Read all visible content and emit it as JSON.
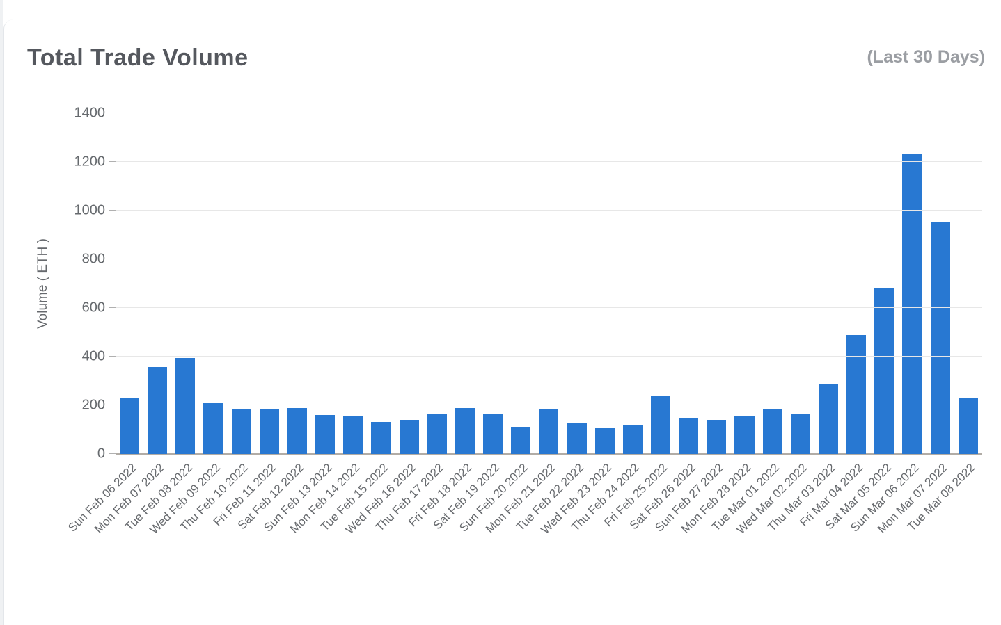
{
  "header": {
    "title": "Total Trade Volume",
    "subtitle": "(Last 30 Days)"
  },
  "colors": {
    "bar": "#2878d2",
    "grid": "#e7e7e7",
    "axis_baseline": "#b1aca6",
    "tick_text": "#666a6e",
    "title_text": "#55585e",
    "subtitle_text": "#9b9ea3"
  },
  "chart_data": {
    "type": "bar",
    "title": "Total Trade Volume",
    "subtitle": "(Last 30 Days)",
    "xlabel": "",
    "ylabel": "Volume ( ETH )",
    "ylim": [
      0,
      1400
    ],
    "ytick_interval": 200,
    "yticks": [
      0,
      200,
      400,
      600,
      800,
      1000,
      1200,
      1400
    ],
    "grid": true,
    "legend": "none",
    "bar_color": "#2878d2",
    "categories": [
      "Sun Feb 06 2022",
      "Mon Feb 07 2022",
      "Tue Feb 08 2022",
      "Wed Feb 09 2022",
      "Thu Feb 10 2022",
      "Fri Feb 11 2022",
      "Sat Feb 12 2022",
      "Sun Feb 13 2022",
      "Mon Feb 14 2022",
      "Tue Feb 15 2022",
      "Wed Feb 16 2022",
      "Thu Feb 17 2022",
      "Fri Feb 18 2022",
      "Sat Feb 19 2022",
      "Sun Feb 20 2022",
      "Mon Feb 21 2022",
      "Tue Feb 22 2022",
      "Wed Feb 23 2022",
      "Thu Feb 24 2022",
      "Fri Feb 25 2022",
      "Sat Feb 26 2022",
      "Sun Feb 27 2022",
      "Mon Feb 28 2022",
      "Tue Mar 01 2022",
      "Wed Mar 02 2022",
      "Thu Mar 03 2022",
      "Fri Mar 04 2022",
      "Sat Mar 05 2022",
      "Sun Mar 06 2022",
      "Mon Mar 07 2022",
      "Tue Mar 08 2022"
    ],
    "values": [
      230,
      357,
      393,
      210,
      187,
      185,
      190,
      161,
      158,
      132,
      139,
      164,
      188,
      167,
      112,
      185,
      130,
      108,
      116,
      239,
      148,
      139,
      158,
      186,
      162,
      290,
      489,
      682,
      1232,
      953,
      232
    ]
  }
}
